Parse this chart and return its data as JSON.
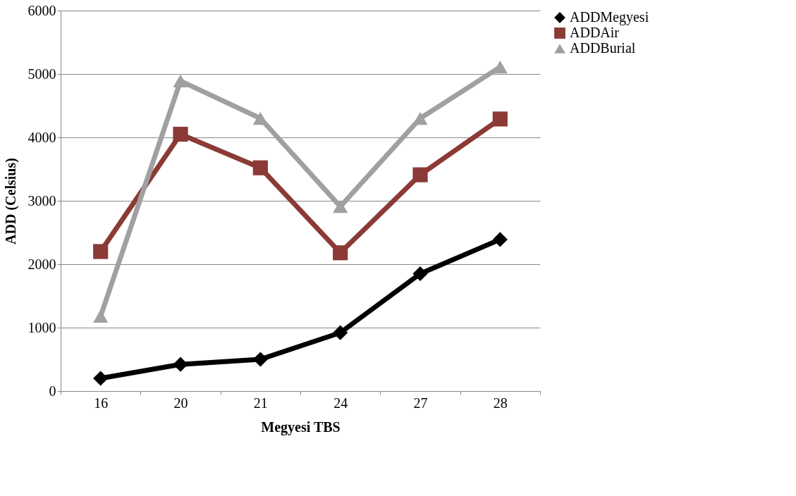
{
  "chart_data": {
    "type": "line",
    "xlabel": "Megyesi TBS",
    "ylabel": "ADD (Celsius)",
    "categories": [
      "16",
      "20",
      "21",
      "24",
      "27",
      "28"
    ],
    "series": [
      {
        "name": "ADDMegyesi",
        "color": "#000000",
        "marker": "diamond",
        "values": [
          200,
          420,
          500,
          920,
          1850,
          2390
        ]
      },
      {
        "name": "ADDAir",
        "color": "#8b3a35",
        "marker": "square",
        "values": [
          2200,
          4050,
          3520,
          2180,
          3410,
          4290
        ]
      },
      {
        "name": "ADDBurial",
        "color": "#a0a0a0",
        "marker": "triangle",
        "values": [
          1180,
          4890,
          4300,
          2910,
          4300,
          5110
        ]
      }
    ],
    "ylim": [
      0,
      6000
    ],
    "yticks": [
      0,
      1000,
      2000,
      3000,
      4000,
      5000,
      6000
    ],
    "grid": "y",
    "legend": "right",
    "line_style": "solid"
  }
}
